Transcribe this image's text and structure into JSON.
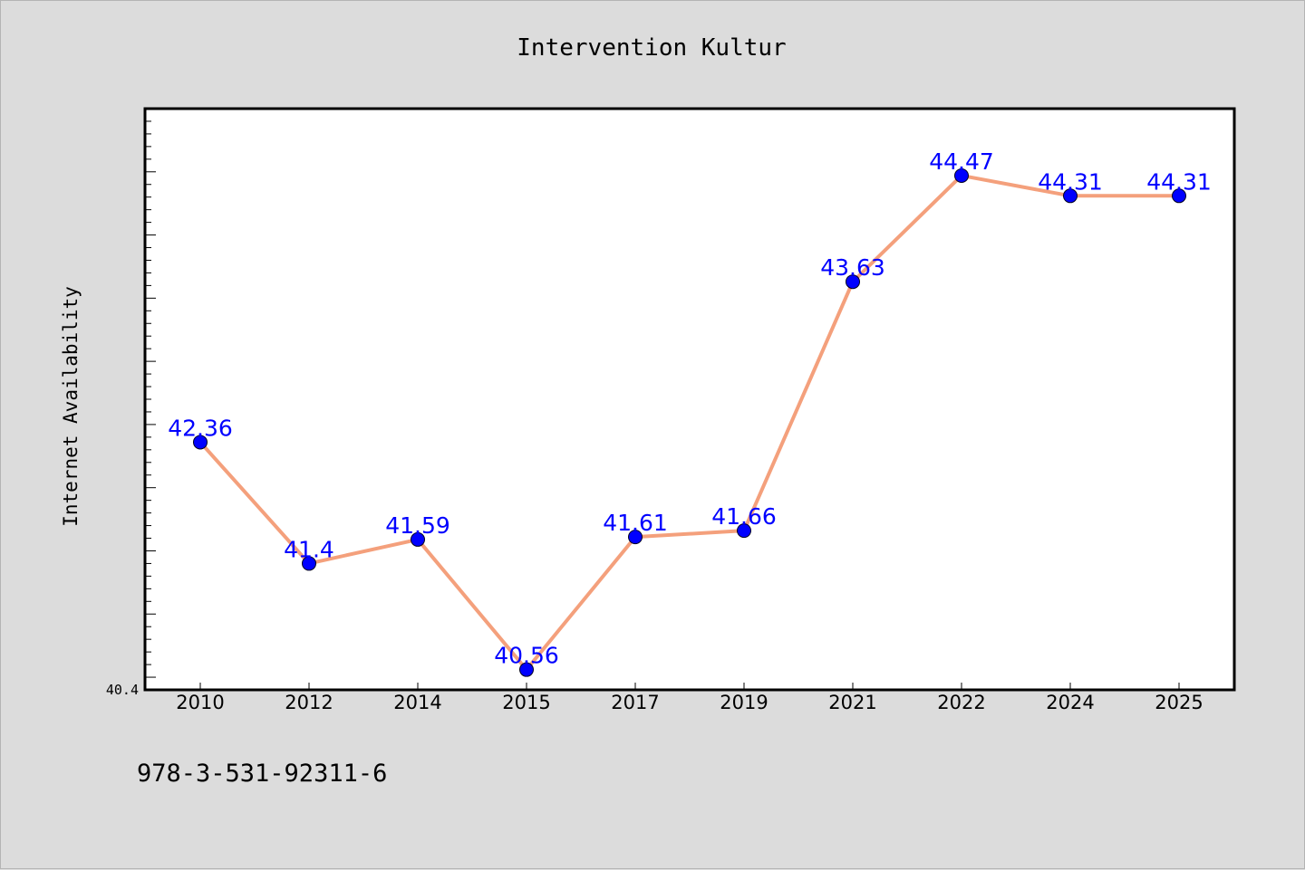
{
  "chart_data": {
    "type": "line",
    "title": "Intervention Kultur",
    "xlabel": "",
    "ylabel": "Internet Availability",
    "categories": [
      "2010",
      "2012",
      "2014",
      "2015",
      "2017",
      "2019",
      "2021",
      "2022",
      "2024",
      "2025"
    ],
    "series": [
      {
        "values": [
          42.36,
          41.4,
          41.59,
          40.56,
          41.61,
          41.66,
          43.63,
          44.47,
          44.31,
          44.31
        ],
        "labels": [
          "42.36",
          "41.4",
          "41.59",
          "40.56",
          "41.61",
          "41.66",
          "43.63",
          "44.47",
          "44.31",
          "44.31"
        ],
        "line_color": "#f4a07c",
        "marker_color": "#0000ff"
      }
    ],
    "ylim": [
      40.4,
      45.0
    ],
    "ytick_labels": [
      "40.4"
    ],
    "grid": false,
    "legend": "none",
    "annotation": "978-3-531-92311-6"
  }
}
